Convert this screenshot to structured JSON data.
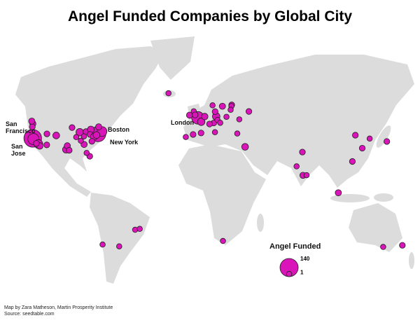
{
  "chart_data": {
    "type": "map",
    "title": "Angel Funded Companies by Global City",
    "color": "#d914b8",
    "legend": {
      "title": "Angel Funded",
      "values": [
        140,
        1
      ]
    },
    "credit": "Map by Zara Matheson, Martin Prosperity Institute",
    "source": "Source: seedtable.com",
    "points": [
      {
        "name": "San Francisco",
        "lon": -122.4,
        "lat": 37.8,
        "value": 130
      },
      {
        "name": "San Jose",
        "lon": -121.9,
        "lat": 37.3,
        "value": 35
      },
      {
        "name": "New York",
        "lon": -74.0,
        "lat": 40.7,
        "value": 90
      },
      {
        "name": "Boston",
        "lon": -71.1,
        "lat": 42.4,
        "value": 22
      },
      {
        "name": "London",
        "lon": -0.1,
        "lat": 51.5,
        "value": 50
      },
      {
        "lon": -122.3,
        "lat": 47.6,
        "value": 3
      },
      {
        "lon": -122.7,
        "lat": 45.5,
        "value": 2
      },
      {
        "lon": -123.1,
        "lat": 49.3,
        "value": 3
      },
      {
        "lon": -118.2,
        "lat": 34.0,
        "value": 15
      },
      {
        "lon": -117.2,
        "lat": 32.7,
        "value": 4
      },
      {
        "lon": -119.7,
        "lat": 34.4,
        "value": 2
      },
      {
        "lon": -111.9,
        "lat": 40.8,
        "value": 2
      },
      {
        "lon": -105.0,
        "lat": 39.7,
        "value": 5
      },
      {
        "lon": -112.0,
        "lat": 33.4,
        "value": 2
      },
      {
        "lon": -97.7,
        "lat": 30.3,
        "value": 6
      },
      {
        "lon": -96.8,
        "lat": 32.8,
        "value": 3
      },
      {
        "lon": -95.4,
        "lat": 29.8,
        "value": 2
      },
      {
        "lon": -93.3,
        "lat": 45.0,
        "value": 2
      },
      {
        "lon": -87.6,
        "lat": 41.9,
        "value": 8
      },
      {
        "lon": -83.0,
        "lat": 42.3,
        "value": 2
      },
      {
        "lon": -79.4,
        "lat": 43.7,
        "value": 5
      },
      {
        "lon": -73.6,
        "lat": 45.5,
        "value": 3
      },
      {
        "lon": -80.0,
        "lat": 40.4,
        "value": 2
      },
      {
        "lon": -77.0,
        "lat": 38.9,
        "value": 6
      },
      {
        "lon": -75.2,
        "lat": 40.0,
        "value": 5
      },
      {
        "lon": -84.4,
        "lat": 33.7,
        "value": 3
      },
      {
        "lon": -80.2,
        "lat": 25.8,
        "value": 2
      },
      {
        "lon": -86.8,
        "lat": 36.2,
        "value": 1
      },
      {
        "lon": -78.6,
        "lat": 35.8,
        "value": 2
      },
      {
        "lon": -90.2,
        "lat": 38.6,
        "value": 1
      },
      {
        "lon": -84.5,
        "lat": 39.1,
        "value": 1
      },
      {
        "lon": -82.5,
        "lat": 28.0,
        "value": 1
      },
      {
        "lon": -21.9,
        "lat": 68.0,
        "value": 1
      },
      {
        "lon": -6.3,
        "lat": 53.3,
        "value": 3
      },
      {
        "lon": -3.2,
        "lat": 55.9,
        "value": 1
      },
      {
        "lon": -2.2,
        "lat": 53.5,
        "value": 2
      },
      {
        "lon": 2.3,
        "lat": 48.9,
        "value": 8
      },
      {
        "lon": 4.9,
        "lat": 52.4,
        "value": 4
      },
      {
        "lon": 13.4,
        "lat": 52.5,
        "value": 8
      },
      {
        "lon": 11.6,
        "lat": 48.1,
        "value": 2
      },
      {
        "lon": 8.5,
        "lat": 47.4,
        "value": 2
      },
      {
        "lon": 18.0,
        "lat": 59.3,
        "value": 3
      },
      {
        "lon": 24.9,
        "lat": 60.2,
        "value": 2
      },
      {
        "lon": 10.7,
        "lat": 59.9,
        "value": 1
      },
      {
        "lon": 12.6,
        "lat": 55.7,
        "value": 2
      },
      {
        "lon": 21.0,
        "lat": 52.2,
        "value": 1
      },
      {
        "lon": 14.4,
        "lat": 50.1,
        "value": 1
      },
      {
        "lon": 16.4,
        "lat": 48.2,
        "value": 1
      },
      {
        "lon": 37.6,
        "lat": 55.8,
        "value": 2
      },
      {
        "lon": 30.5,
        "lat": 50.5,
        "value": 1
      },
      {
        "lon": -3.7,
        "lat": 40.4,
        "value": 2
      },
      {
        "lon": 2.2,
        "lat": 41.4,
        "value": 2
      },
      {
        "lon": -9.1,
        "lat": 38.7,
        "value": 1
      },
      {
        "lon": 12.5,
        "lat": 41.9,
        "value": 1
      },
      {
        "lon": 29.0,
        "lat": 41.0,
        "value": 1
      },
      {
        "lon": 34.8,
        "lat": 32.1,
        "value": 5
      },
      {
        "lon": 24.7,
        "lat": 59.4,
        "value": 1
      },
      {
        "lon": 24.1,
        "lat": 56.9,
        "value": 1
      },
      {
        "lon": 77.2,
        "lat": 28.6,
        "value": 2
      },
      {
        "lon": 72.9,
        "lat": 19.0,
        "value": 1
      },
      {
        "lon": 77.6,
        "lat": 13.0,
        "value": 3
      },
      {
        "lon": 80.3,
        "lat": 13.1,
        "value": 1
      },
      {
        "lon": 103.8,
        "lat": 1.3,
        "value": 3
      },
      {
        "lon": 114.2,
        "lat": 22.3,
        "value": 2
      },
      {
        "lon": 121.5,
        "lat": 31.2,
        "value": 2
      },
      {
        "lon": 116.4,
        "lat": 39.9,
        "value": 2
      },
      {
        "lon": 127.0,
        "lat": 37.6,
        "value": 1
      },
      {
        "lon": 139.7,
        "lat": 35.7,
        "value": 2
      },
      {
        "lon": -58.4,
        "lat": -34.6,
        "value": 1
      },
      {
        "lon": -70.7,
        "lat": -33.4,
        "value": 1
      },
      {
        "lon": -46.6,
        "lat": -23.5,
        "value": 1
      },
      {
        "lon": -43.2,
        "lat": -22.9,
        "value": 1
      },
      {
        "lon": 18.4,
        "lat": -31.0,
        "value": 1
      },
      {
        "lon": 151.2,
        "lat": -33.9,
        "value": 2
      },
      {
        "lon": 137.0,
        "lat": -35.0,
        "value": 1
      }
    ]
  }
}
